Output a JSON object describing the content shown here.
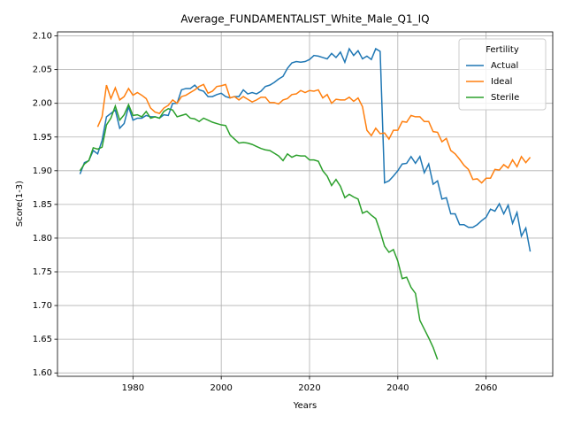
{
  "chart_data": {
    "type": "line",
    "title": "Average_FUNDAMENTALIST_White_Male_Q1_IQ",
    "x_label": "Years",
    "y_label": "Score(1-3)",
    "x": [
      1968,
      1969,
      1970,
      1971,
      1972,
      1973,
      1974,
      1975,
      1976,
      1977,
      1978,
      1979,
      1980,
      1981,
      1982,
      1983,
      1984,
      1985,
      1986,
      1987,
      1988,
      1989,
      1990,
      1991,
      1992,
      1993,
      1994,
      1995,
      1996,
      1997,
      1998,
      1999,
      2000,
      2001,
      2002,
      2003,
      2004,
      2005,
      2006,
      2007,
      2008,
      2009,
      2010,
      2011,
      2012,
      2013,
      2014,
      2015,
      2016,
      2017,
      2018,
      2019,
      2020,
      2021,
      2022,
      2023,
      2024,
      2025,
      2026,
      2027,
      2028,
      2029,
      2030,
      2031,
      2032,
      2033,
      2034,
      2035,
      2036,
      2037,
      2038,
      2039,
      2040,
      2041,
      2042,
      2043,
      2044,
      2045,
      2046,
      2047,
      2048,
      2049,
      2050,
      2051,
      2052,
      2053,
      2054,
      2055,
      2056,
      2057,
      2058,
      2059,
      2060,
      2061,
      2062,
      2063,
      2064,
      2065,
      2066,
      2067,
      2068,
      2069,
      2070
    ],
    "series": [
      {
        "name": "Actual",
        "color": "#1f77b4",
        "values": [
          1.895,
          1.912,
          1.915,
          1.93,
          1.925,
          1.945,
          1.98,
          1.985,
          1.99,
          1.963,
          1.97,
          1.995,
          1.975,
          1.978,
          1.978,
          1.982,
          1.98,
          1.98,
          1.978,
          1.983,
          1.982,
          2.0,
          2.0,
          2.02,
          2.022,
          2.022,
          2.027,
          2.02,
          2.018,
          2.01,
          2.01,
          2.013,
          2.015,
          2.01,
          2.008,
          2.01,
          2.01,
          2.02,
          2.014,
          2.016,
          2.014,
          2.018,
          2.025,
          2.027,
          2.031,
          2.036,
          2.04,
          2.052,
          2.06,
          2.062,
          2.061,
          2.062,
          2.065,
          2.071,
          2.07,
          2.068,
          2.066,
          2.074,
          2.068,
          2.076,
          2.061,
          2.081,
          2.071,
          2.078,
          2.066,
          2.07,
          2.065,
          2.081,
          2.077,
          1.882,
          1.885,
          1.892,
          1.9,
          1.91,
          1.911,
          1.921,
          1.911,
          1.921,
          1.897,
          1.91,
          1.88,
          1.885,
          1.858,
          1.86,
          1.836,
          1.836,
          1.82,
          1.82,
          1.816,
          1.816,
          1.82,
          1.826,
          1.831,
          1.843,
          1.84,
          1.851,
          1.836,
          1.849,
          1.822,
          1.838,
          1.803,
          1.815,
          1.78
        ]
      },
      {
        "name": "Ideal",
        "color": "#ff7f0e",
        "values": [
          null,
          null,
          null,
          null,
          1.965,
          1.98,
          2.027,
          2.007,
          2.023,
          2.005,
          2.01,
          2.022,
          2.012,
          2.016,
          2.012,
          2.007,
          1.993,
          1.987,
          1.985,
          1.993,
          1.997,
          2.005,
          2.0,
          2.01,
          2.012,
          2.016,
          2.02,
          2.025,
          2.028,
          2.015,
          2.018,
          2.025,
          2.026,
          2.028,
          2.008,
          2.01,
          2.005,
          2.01,
          2.006,
          2.002,
          2.005,
          2.009,
          2.009,
          2.001,
          2.001,
          1.999,
          2.005,
          2.007,
          2.013,
          2.014,
          2.019,
          2.016,
          2.019,
          2.018,
          2.02,
          2.008,
          2.013,
          2.0,
          2.006,
          2.005,
          2.005,
          2.009,
          2.003,
          2.008,
          1.995,
          1.96,
          1.952,
          1.963,
          1.955,
          1.956,
          1.947,
          1.96,
          1.96,
          1.973,
          1.972,
          1.982,
          1.98,
          1.98,
          1.973,
          1.973,
          1.958,
          1.957,
          1.943,
          1.948,
          1.93,
          1.925,
          1.917,
          1.908,
          1.902,
          1.887,
          1.888,
          1.882,
          1.889,
          1.889,
          1.902,
          1.901,
          1.909,
          1.904,
          1.916,
          1.906,
          1.921,
          1.912,
          1.92
        ]
      },
      {
        "name": "Sterile",
        "color": "#2ca02c",
        "values": [
          1.9,
          1.91,
          1.915,
          1.934,
          1.932,
          1.935,
          1.968,
          1.978,
          1.996,
          1.975,
          1.983,
          1.998,
          1.982,
          1.983,
          1.98,
          1.988,
          1.978,
          1.98,
          1.978,
          1.988,
          1.992,
          1.99,
          1.98,
          1.982,
          1.984,
          1.978,
          1.977,
          1.973,
          1.978,
          1.975,
          1.972,
          1.97,
          1.968,
          1.967,
          1.953,
          1.947,
          1.941,
          1.942,
          1.941,
          1.939,
          1.936,
          1.933,
          1.931,
          1.93,
          1.926,
          1.922,
          1.915,
          1.925,
          1.92,
          1.923,
          1.922,
          1.922,
          1.916,
          1.916,
          1.914,
          1.9,
          1.892,
          1.878,
          1.887,
          1.877,
          1.86,
          1.865,
          1.861,
          1.858,
          1.837,
          1.84,
          1.834,
          1.829,
          1.81,
          1.788,
          1.779,
          1.783,
          1.766,
          1.74,
          1.742,
          1.727,
          1.718,
          1.678,
          1.665,
          1.652,
          1.638,
          1.62,
          null,
          null,
          null,
          null,
          null,
          null,
          null,
          null,
          null,
          null,
          null,
          null,
          null,
          null,
          null,
          null,
          null,
          null,
          null,
          null,
          null
        ]
      }
    ],
    "xlim": [
      1962.9,
      2075.1
    ],
    "xticks": [
      1980,
      2000,
      2020,
      2040,
      2060
    ],
    "ylim": [
      1.595,
      2.106
    ],
    "yticks": [
      {
        "value": 1.6,
        "label": "1.60"
      },
      {
        "value": 1.65,
        "label": "1.65"
      },
      {
        "value": 1.7,
        "label": "1.70"
      },
      {
        "value": 1.75,
        "label": "1.75"
      },
      {
        "value": 1.8,
        "label": "1.80"
      },
      {
        "value": 1.85,
        "label": "1.85"
      },
      {
        "value": 1.9,
        "label": "1.90"
      },
      {
        "value": 1.95,
        "label": "1.95"
      },
      {
        "value": 2.0,
        "label": "2.00"
      },
      {
        "value": 2.05,
        "label": "2.05"
      },
      {
        "value": 2.1,
        "label": "2.10"
      }
    ],
    "grid": true,
    "legend": {
      "title": "Fertility",
      "position": "upper right"
    }
  }
}
